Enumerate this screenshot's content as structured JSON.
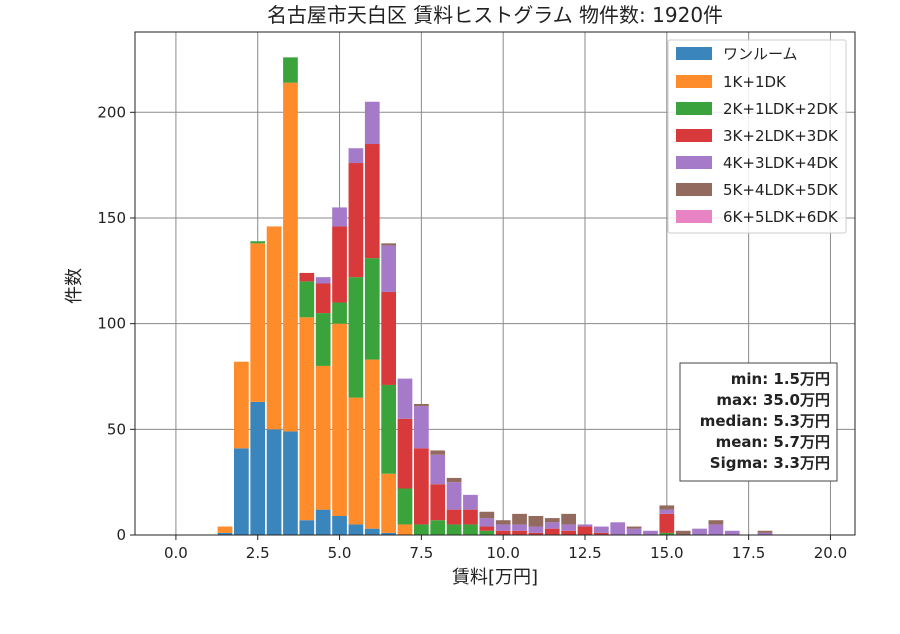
{
  "chart_data": {
    "type": "bar",
    "stacked": true,
    "title": "名古屋市天白区 賃料ヒストグラム 物件数: 1920件",
    "xlabel": "賃料[万円]",
    "ylabel": "件数",
    "xlim": [
      -1.25,
      20.75
    ],
    "ylim": [
      0,
      238
    ],
    "xticks": [
      0.0,
      2.5,
      5.0,
      7.5,
      10.0,
      12.5,
      15.0,
      17.5,
      20.0
    ],
    "xtick_labels": [
      "0.0",
      "2.5",
      "5.0",
      "7.5",
      "10.0",
      "12.5",
      "15.0",
      "17.5",
      "20.0"
    ],
    "yticks": [
      0,
      50,
      100,
      150,
      200
    ],
    "ytick_labels": [
      "0",
      "50",
      "100",
      "150",
      "200"
    ],
    "grid": true,
    "legend_position": "top-right",
    "bin_width": 0.5,
    "x": [
      1.5,
      2.0,
      2.5,
      3.0,
      3.5,
      4.0,
      4.5,
      5.0,
      5.5,
      6.0,
      6.5,
      7.0,
      7.5,
      8.0,
      8.5,
      9.0,
      9.5,
      10.0,
      10.5,
      11.0,
      11.5,
      12.0,
      12.5,
      13.0,
      13.5,
      14.0,
      14.5,
      15.0,
      15.5,
      16.0,
      16.5,
      17.0,
      17.5,
      18.0
    ],
    "series": [
      {
        "name": "ワンルーム",
        "color": "#3a85bc",
        "values": [
          1,
          41,
          63,
          50,
          49,
          7,
          12,
          9,
          5,
          3,
          1,
          0,
          0,
          0,
          0,
          0,
          0,
          0,
          0,
          0,
          0,
          0,
          0,
          0,
          0,
          0,
          0,
          0,
          0,
          0,
          0,
          0,
          0,
          0
        ]
      },
      {
        "name": "1K+1DK",
        "color": "#ff8c2a",
        "values": [
          3,
          41,
          75,
          96,
          165,
          96,
          68,
          91,
          60,
          80,
          28,
          5,
          0,
          0,
          0,
          0,
          0,
          0,
          0,
          0,
          0,
          0,
          0,
          0,
          0,
          0,
          0,
          0,
          0,
          0,
          0,
          0,
          0,
          0
        ]
      },
      {
        "name": "2K+1LDK+2DK",
        "color": "#3ba33b",
        "values": [
          0,
          0,
          1,
          0,
          12,
          17,
          25,
          10,
          57,
          48,
          42,
          17,
          5,
          7,
          5,
          5,
          2,
          0,
          0,
          0,
          0,
          0,
          0,
          0,
          0,
          0,
          0,
          1,
          0,
          0,
          0,
          0,
          0,
          0
        ]
      },
      {
        "name": "3K+2LDK+3DK",
        "color": "#d83a3b",
        "values": [
          0,
          0,
          0,
          0,
          0,
          4,
          14,
          36,
          54,
          54,
          44,
          33,
          36,
          17,
          7,
          7,
          2,
          2,
          2,
          1,
          3,
          2,
          4,
          1,
          0,
          0,
          0,
          9,
          0,
          0,
          0,
          0,
          0,
          0
        ]
      },
      {
        "name": "4K+3LDK+4DK",
        "color": "#a57ac8",
        "values": [
          0,
          0,
          0,
          0,
          0,
          0,
          3,
          9,
          7,
          20,
          22,
          19,
          20,
          14,
          13,
          7,
          4,
          3,
          3,
          3,
          3,
          3,
          1,
          3,
          6,
          3,
          2,
          2,
          0,
          3,
          5,
          2,
          0,
          1
        ]
      },
      {
        "name": "5K+4LDK+5DK",
        "color": "#936a5e",
        "values": [
          0,
          0,
          0,
          0,
          0,
          0,
          0,
          0,
          0,
          0,
          1,
          0,
          1,
          2,
          2,
          0,
          3,
          2,
          5,
          5,
          2,
          5,
          0,
          0,
          0,
          1,
          0,
          2,
          2,
          0,
          2,
          0,
          0,
          1
        ]
      },
      {
        "name": "6K+5LDK+6DK",
        "color": "#e884c4",
        "values": [
          0,
          0,
          0,
          0,
          0,
          0,
          0,
          0,
          0,
          0,
          0,
          0,
          0,
          0,
          0,
          0,
          0,
          0,
          0,
          0,
          0,
          0,
          0,
          0,
          0,
          0,
          0,
          0,
          0,
          0,
          0,
          0,
          0,
          0
        ]
      }
    ],
    "stats_box": {
      "lines": [
        "min: 1.5万円",
        "max: 35.0万円",
        "median: 5.3万円",
        "mean: 5.7万円",
        "Sigma: 3.3万円"
      ]
    }
  }
}
